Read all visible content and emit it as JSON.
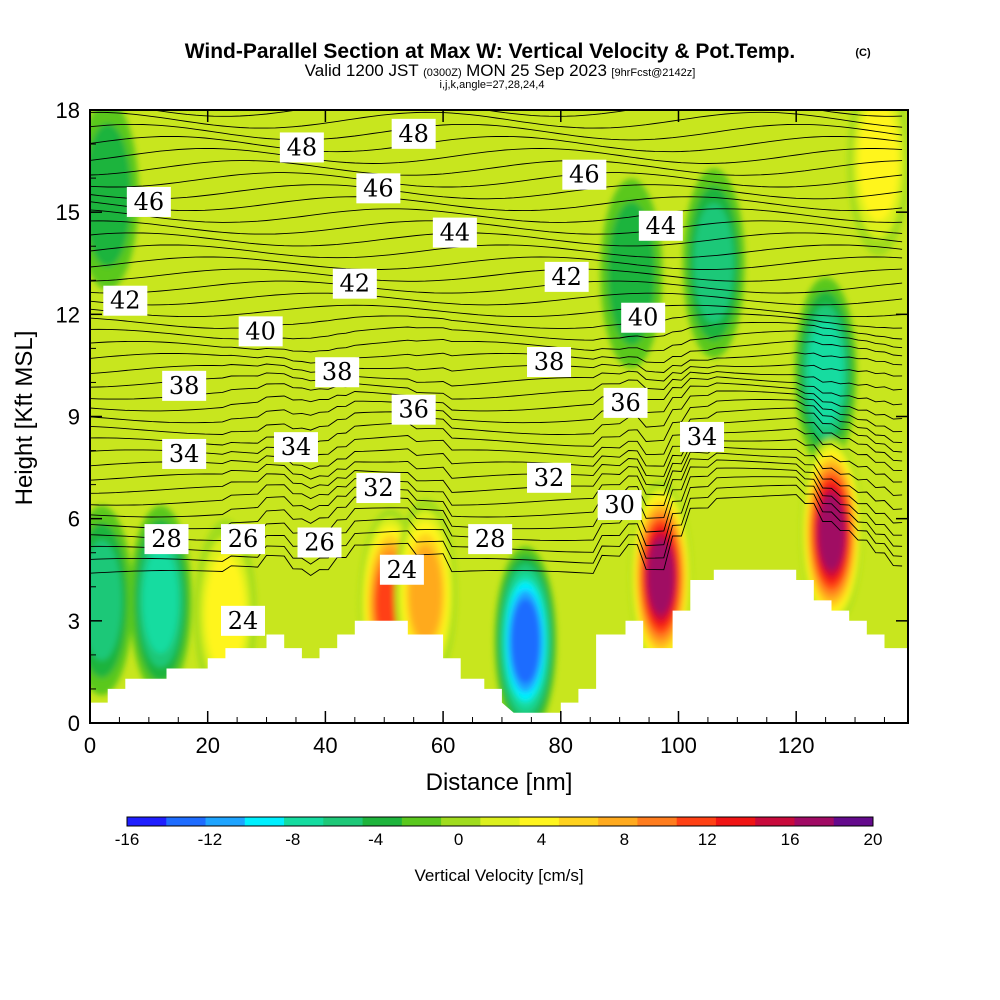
{
  "title": "Wind-Parallel Section at Max W: Vertical Velocity & Pot.Temp.",
  "title_mark": "(C)",
  "subtitle_parts": [
    "Valid 1200 JST",
    "(0300Z)",
    "MON 25 Sep 2023",
    "[9hrFcst@2142z]"
  ],
  "subtitle2": "i,j,k,angle=27,28,24,4",
  "chart_data": {
    "type": "heatmap",
    "title": "Wind-Parallel Section at Max W: Vertical Velocity & Pot.Temp.",
    "xlabel": "Distance [nm]",
    "ylabel": "Height [Kft MSL]",
    "xlim": [
      0,
      139
    ],
    "ylim": [
      0,
      18
    ],
    "xticks": [
      0,
      20,
      40,
      60,
      80,
      100,
      120
    ],
    "yticks": [
      0,
      3,
      6,
      9,
      12,
      15,
      18
    ],
    "colorbar": {
      "label": "Vertical Velocity [cm/s]",
      "tick_labels": [
        "-16",
        "-12",
        "-8",
        "-4",
        "0",
        "4",
        "8",
        "12",
        "16",
        "20"
      ],
      "levels": [
        -16,
        -14,
        -12,
        -10,
        -8,
        -6,
        -4,
        -2,
        0,
        2,
        4,
        6,
        8,
        10,
        12,
        14,
        16,
        18,
        20
      ],
      "colors": [
        "#1f1fff",
        "#1e6cff",
        "#1ea4ff",
        "#00f0ff",
        "#14dca0",
        "#1ec878",
        "#1eb43c",
        "#5ac81e",
        "#a0dc1e",
        "#dcf01e",
        "#fff51e",
        "#ffd21e",
        "#ffaa1e",
        "#ff7d1e",
        "#ff4114",
        "#f01414",
        "#c80a3c",
        "#a00a64",
        "#640a8c"
      ]
    },
    "terrain": [
      [
        0,
        0.6
      ],
      [
        3,
        0.6
      ],
      [
        3,
        1.0
      ],
      [
        6,
        1.0
      ],
      [
        6,
        1.3
      ],
      [
        13,
        1.3
      ],
      [
        13,
        1.6
      ],
      [
        20,
        1.6
      ],
      [
        20,
        1.9
      ],
      [
        23,
        1.9
      ],
      [
        23,
        2.2
      ],
      [
        30,
        2.2
      ],
      [
        30,
        2.6
      ],
      [
        33,
        2.6
      ],
      [
        33,
        2.2
      ],
      [
        36,
        2.2
      ],
      [
        36,
        1.9
      ],
      [
        39,
        1.9
      ],
      [
        39,
        2.2
      ],
      [
        42,
        2.2
      ],
      [
        42,
        2.6
      ],
      [
        45,
        2.6
      ],
      [
        45,
        3.0
      ],
      [
        54,
        3.0
      ],
      [
        54,
        2.6
      ],
      [
        60,
        2.6
      ],
      [
        60,
        1.9
      ],
      [
        63,
        1.9
      ],
      [
        63,
        1.3
      ],
      [
        67,
        1.3
      ],
      [
        67,
        1.0
      ],
      [
        70,
        1.0
      ],
      [
        70,
        0.6
      ],
      [
        72,
        0.3
      ],
      [
        80,
        0.3
      ],
      [
        80,
        0.6
      ],
      [
        83,
        0.6
      ],
      [
        83,
        1.0
      ],
      [
        86,
        1.0
      ],
      [
        86,
        2.6
      ],
      [
        91,
        2.6
      ],
      [
        91,
        3.0
      ],
      [
        94,
        3.0
      ],
      [
        94,
        2.2
      ],
      [
        99,
        2.2
      ],
      [
        99,
        3.3
      ],
      [
        102,
        3.3
      ],
      [
        102,
        4.2
      ],
      [
        106,
        4.2
      ],
      [
        106,
        4.5
      ],
      [
        120,
        4.5
      ],
      [
        120,
        4.2
      ],
      [
        123,
        4.2
      ],
      [
        123,
        3.6
      ],
      [
        126,
        3.6
      ],
      [
        126,
        3.3
      ],
      [
        129,
        3.3
      ],
      [
        129,
        3.0
      ],
      [
        132,
        3.0
      ],
      [
        132,
        2.6
      ],
      [
        135,
        2.6
      ],
      [
        135,
        2.2
      ],
      [
        139,
        2.2
      ],
      [
        139,
        0
      ],
      [
        0,
        0
      ]
    ],
    "vertical_velocity_features": [
      {
        "x": 12,
        "y": 3.6,
        "value": -8
      },
      {
        "x": 2,
        "y": 3.6,
        "value": -6
      },
      {
        "x": 74,
        "y": 2.4,
        "value": -14
      },
      {
        "x": 106,
        "y": 13.5,
        "value": -5
      },
      {
        "x": 125,
        "y": 10.3,
        "value": -8
      },
      {
        "x": 3,
        "y": 15.5,
        "value": -4
      },
      {
        "x": 92,
        "y": 13.2,
        "value": -4
      },
      {
        "x": 51,
        "y": 3.5,
        "value": 13
      },
      {
        "x": 57,
        "y": 3.8,
        "value": 9
      },
      {
        "x": 97,
        "y": 4.3,
        "value": 19
      },
      {
        "x": 126,
        "y": 5.6,
        "value": 20
      },
      {
        "x": 134,
        "y": 16.5,
        "value": 5
      },
      {
        "x": 23,
        "y": 3.2,
        "value": 6
      }
    ],
    "theta_contour_labels": [
      {
        "text": "48",
        "x": 36,
        "y": 16.9
      },
      {
        "text": "48",
        "x": 55,
        "y": 17.3
      },
      {
        "text": "46",
        "x": 10,
        "y": 15.3
      },
      {
        "text": "46",
        "x": 49,
        "y": 15.7
      },
      {
        "text": "46",
        "x": 84,
        "y": 16.1
      },
      {
        "text": "44",
        "x": 62,
        "y": 14.4
      },
      {
        "text": "44",
        "x": 97,
        "y": 14.6
      },
      {
        "text": "42",
        "x": 6,
        "y": 12.4
      },
      {
        "text": "42",
        "x": 45,
        "y": 12.9
      },
      {
        "text": "42",
        "x": 81,
        "y": 13.1
      },
      {
        "text": "40",
        "x": 29,
        "y": 11.5
      },
      {
        "text": "40",
        "x": 94,
        "y": 11.9
      },
      {
        "text": "38",
        "x": 16,
        "y": 9.9
      },
      {
        "text": "38",
        "x": 42,
        "y": 10.3
      },
      {
        "text": "38",
        "x": 78,
        "y": 10.6
      },
      {
        "text": "36",
        "x": 55,
        "y": 9.2
      },
      {
        "text": "36",
        "x": 91,
        "y": 9.4
      },
      {
        "text": "34",
        "x": 16,
        "y": 7.9
      },
      {
        "text": "34",
        "x": 35,
        "y": 8.1
      },
      {
        "text": "34",
        "x": 104,
        "y": 8.4
      },
      {
        "text": "32",
        "x": 49,
        "y": 6.9
      },
      {
        "text": "32",
        "x": 78,
        "y": 7.2
      },
      {
        "text": "30",
        "x": 90,
        "y": 6.4
      },
      {
        "text": "28",
        "x": 13,
        "y": 5.4
      },
      {
        "text": "28",
        "x": 68,
        "y": 5.4
      },
      {
        "text": "26",
        "x": 26,
        "y": 5.4
      },
      {
        "text": "26",
        "x": 39,
        "y": 5.3
      },
      {
        "text": "24",
        "x": 53,
        "y": 4.5
      },
      {
        "text": "24",
        "x": 26,
        "y": 3.0
      }
    ]
  }
}
